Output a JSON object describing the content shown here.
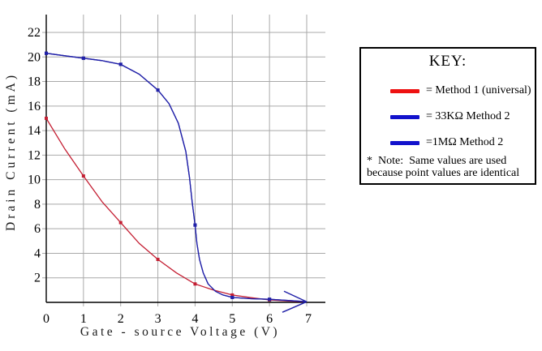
{
  "chart_data": {
    "type": "line",
    "title": "",
    "xlabel": "Gate - source Voltage (V)",
    "ylabel": "Drain Current (mA)",
    "xlim": [
      0,
      7.3
    ],
    "ylim": [
      0,
      23.4
    ],
    "x_ticks": [
      0,
      1,
      2,
      3,
      4,
      5,
      6,
      7
    ],
    "y_ticks": [
      2,
      4,
      6,
      8,
      10,
      12,
      14,
      16,
      18,
      20,
      22
    ],
    "grid": true,
    "axis_color": "#000000",
    "grid_color": "#a9a9a9",
    "x_axis_arrow_color": "#2121a8",
    "series": [
      {
        "name": "Method 1 (universal)",
        "color": "#c41f33",
        "points_x": [
          0,
          1,
          2,
          3,
          4,
          5,
          6
        ],
        "points_y": [
          15,
          10.3,
          6.5,
          3.5,
          1.5,
          0.6,
          0.2
        ],
        "curve": [
          [
            0,
            15
          ],
          [
            0.5,
            12.5
          ],
          [
            1,
            10.3
          ],
          [
            1.5,
            8.2
          ],
          [
            2,
            6.5
          ],
          [
            2.5,
            4.8
          ],
          [
            3,
            3.5
          ],
          [
            3.5,
            2.4
          ],
          [
            4,
            1.5
          ],
          [
            4.5,
            1.0
          ],
          [
            5,
            0.6
          ],
          [
            5.5,
            0.38
          ],
          [
            6,
            0.2
          ],
          [
            6.45,
            0.12
          ],
          [
            6.9,
            0.05
          ]
        ],
        "arrow_end": false
      },
      {
        "name": "33KΩ Method 2",
        "color": "#2121a8",
        "points_x": [
          0,
          1,
          2,
          3,
          4,
          5,
          6
        ],
        "points_y": [
          20.3,
          19.9,
          19.4,
          17.3,
          6.3,
          0.4,
          0.25
        ],
        "curve": [
          [
            0,
            20.3
          ],
          [
            0.5,
            20.1
          ],
          [
            1,
            19.9
          ],
          [
            1.5,
            19.7
          ],
          [
            2,
            19.4
          ],
          [
            2.5,
            18.6
          ],
          [
            3,
            17.3
          ],
          [
            3.3,
            16.2
          ],
          [
            3.55,
            14.6
          ],
          [
            3.75,
            12.3
          ],
          [
            3.85,
            10.2
          ],
          [
            3.92,
            8.2
          ],
          [
            4,
            6.3
          ],
          [
            4.05,
            4.8
          ],
          [
            4.12,
            3.5
          ],
          [
            4.22,
            2.4
          ],
          [
            4.35,
            1.5
          ],
          [
            4.55,
            0.9
          ],
          [
            4.75,
            0.6
          ],
          [
            5,
            0.4
          ],
          [
            5.5,
            0.3
          ],
          [
            6,
            0.25
          ],
          [
            6.5,
            0.15
          ],
          [
            7,
            0.05
          ]
        ],
        "arrow_end": true
      },
      {
        "name": "1MΩ Method 2",
        "color": "#2121a8",
        "points_x": [
          0,
          1,
          2,
          3,
          4,
          5,
          6
        ],
        "points_y": [
          20.3,
          19.9,
          19.4,
          17.3,
          6.3,
          0.4,
          0.25
        ],
        "curve": [
          [
            0,
            20.3
          ],
          [
            0.5,
            20.1
          ],
          [
            1,
            19.9
          ],
          [
            1.5,
            19.7
          ],
          [
            2,
            19.4
          ],
          [
            2.5,
            18.6
          ],
          [
            3,
            17.3
          ],
          [
            3.3,
            16.2
          ],
          [
            3.55,
            14.6
          ],
          [
            3.75,
            12.3
          ],
          [
            3.85,
            10.2
          ],
          [
            3.92,
            8.2
          ],
          [
            4,
            6.3
          ],
          [
            4.05,
            4.8
          ],
          [
            4.12,
            3.5
          ],
          [
            4.22,
            2.4
          ],
          [
            4.35,
            1.5
          ],
          [
            4.55,
            0.9
          ],
          [
            4.75,
            0.6
          ],
          [
            5,
            0.4
          ],
          [
            5.5,
            0.3
          ],
          [
            6,
            0.25
          ],
          [
            6.5,
            0.15
          ],
          [
            7,
            0.05
          ]
        ],
        "arrow_end": false,
        "note": "identical values to 33KΩ Method 2"
      }
    ]
  },
  "legend": {
    "title": "KEY:",
    "items": [
      {
        "swatch_color": "#ee1111",
        "label": "= Method 1 (universal)"
      },
      {
        "swatch_color": "#1212cc",
        "label": "= 33KΩ Method 2"
      },
      {
        "swatch_color": "#1212cc",
        "label": "=1MΩ Method 2"
      }
    ],
    "note_line1": "*  Note:  Same values are used",
    "note_line2": "because point values are identical"
  }
}
